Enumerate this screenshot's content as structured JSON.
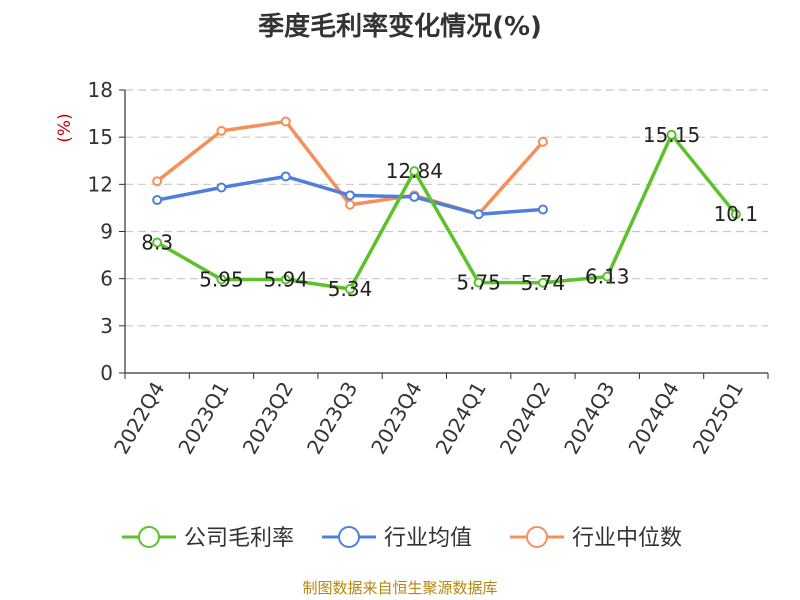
{
  "title": "季度毛利率变化情况(%)",
  "source": "制图数据来自恒生聚源数据库",
  "chart_data": {
    "type": "line",
    "title": "季度毛利率变化情况(%)",
    "ylabel": "(%)",
    "xlabel": "",
    "ylim": [
      0,
      18
    ],
    "yticks": [
      0,
      3,
      6,
      9,
      12,
      15,
      18
    ],
    "grid": true,
    "legend_position": "bottom",
    "categories": [
      "2022Q4",
      "2023Q1",
      "2023Q2",
      "2023Q3",
      "2023Q4",
      "2024Q1",
      "2024Q2",
      "2024Q3",
      "2024Q4",
      "2025Q1"
    ],
    "series": [
      {
        "name": "公司毛利率",
        "color": "#5bc22a",
        "values": [
          8.3,
          5.95,
          5.94,
          5.34,
          12.84,
          5.75,
          5.74,
          6.13,
          15.15,
          10.1
        ],
        "labels": [
          "8.3",
          "5.95",
          "5.94",
          "5.34",
          "12.84",
          "5.75",
          "5.74",
          "6.13",
          "15.15",
          "10.1"
        ]
      },
      {
        "name": "行业均值",
        "color": "#4f7fdc",
        "values": [
          11.0,
          11.8,
          12.5,
          11.3,
          11.2,
          10.1,
          10.4,
          null,
          null,
          null
        ]
      },
      {
        "name": "行业中位数",
        "color": "#f4905a",
        "values": [
          12.2,
          15.4,
          16.0,
          10.7,
          11.3,
          10.1,
          14.7,
          null,
          null,
          null
        ]
      }
    ]
  }
}
